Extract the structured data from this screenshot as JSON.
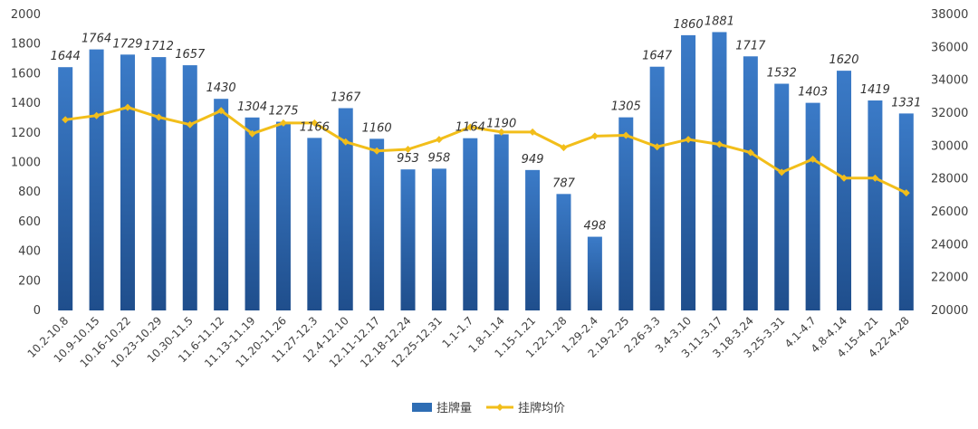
{
  "chart_data": {
    "type": "bar+line",
    "categories": [
      "10.2-10.8",
      "10.9-10.15",
      "10.16-10.22",
      "10.23-10.29",
      "10.30-11.5",
      "11.6-11.12",
      "11.13-11.19",
      "11.20-11.26",
      "11.27-12.3",
      "12.4-12.10",
      "12.11-12.17",
      "12.18-12.24",
      "12.25-12.31",
      "1.1-1.7",
      "1.8-1.14",
      "1.15-1.21",
      "1.22-1.28",
      "1.29-2.4",
      "2.19-2.25",
      "2.26-3.3",
      "3.4-3.10",
      "3.11-3.17",
      "3.18-3.24",
      "3.25-3.31",
      "4.1-4.7",
      "4.8-4.14",
      "4.15-4.21",
      "4.22-4.28"
    ],
    "series": [
      {
        "name": "挂牌量",
        "type": "bar",
        "axis": "left",
        "color": "#2E6DB4",
        "values": [
          1644,
          1764,
          1729,
          1712,
          1657,
          1430,
          1304,
          1275,
          1166,
          1367,
          1160,
          953,
          958,
          1164,
          1190,
          949,
          787,
          498,
          1305,
          1647,
          1860,
          1881,
          1717,
          1532,
          1403,
          1620,
          1419,
          1331
        ]
      },
      {
        "name": "挂牌均价",
        "type": "line",
        "axis": "right",
        "color": "#F2BE1A",
        "values": [
          31600,
          31850,
          32350,
          31750,
          31300,
          32150,
          30750,
          31400,
          31400,
          30250,
          29700,
          29800,
          30400,
          31150,
          30850,
          30850,
          29900,
          30600,
          30650,
          29950,
          30400,
          30100,
          29600,
          28400,
          29200,
          28050,
          28050,
          27150
        ]
      }
    ],
    "y_left": {
      "min": 0,
      "max": 2000,
      "step": 200,
      "ticks": [
        "0",
        "200",
        "400",
        "600",
        "800",
        "1000",
        "1200",
        "1400",
        "1600",
        "1800",
        "2000"
      ]
    },
    "y_right": {
      "min": 20000,
      "max": 38000,
      "step": 2000,
      "ticks": [
        "20000",
        "22000",
        "24000",
        "26000",
        "28000",
        "30000",
        "32000",
        "34000",
        "36000",
        "38000"
      ]
    },
    "legend_position": "bottom",
    "grid": false
  }
}
